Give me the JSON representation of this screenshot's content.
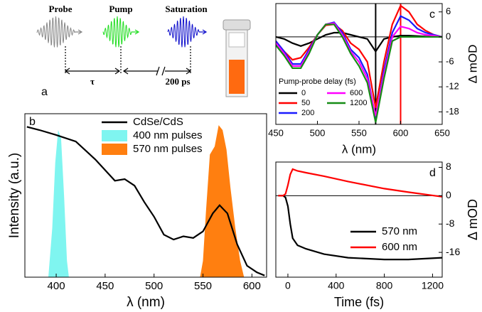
{
  "diagram": {
    "panel_label": "a",
    "pulses": [
      "Probe",
      "Pump",
      "Saturation"
    ],
    "delays": [
      "τ",
      "200 ps"
    ]
  },
  "chart_data": [
    {
      "type": "line",
      "panel_label": "b",
      "x_label": "λ (nm)",
      "y_label": "Intensity (a.u.)",
      "xlim": [
        368,
        615
      ],
      "xticks": [
        400,
        450,
        500,
        550,
        600
      ],
      "ylim": [
        0,
        1
      ],
      "y_axis_side": "left",
      "legend": "upper center",
      "series": [
        {
          "name": "CdSe/CdS",
          "style": "line",
          "color": "#000000",
          "x": [
            370,
            383,
            400,
            420,
            440,
            460,
            470,
            480,
            490,
            500,
            510,
            520,
            530,
            540,
            550,
            560,
            567,
            575,
            585,
            595,
            605,
            613
          ],
          "values": [
            0.92,
            0.9,
            0.87,
            0.83,
            0.72,
            0.59,
            0.6,
            0.56,
            0.46,
            0.37,
            0.26,
            0.23,
            0.25,
            0.24,
            0.28,
            0.39,
            0.44,
            0.39,
            0.2,
            0.07,
            0.03,
            0.01
          ]
        },
        {
          "name": "400 nm pulses",
          "style": "area",
          "color": "#7ff5f0",
          "x": [
            392,
            396,
            399,
            402,
            405,
            408,
            411,
            413
          ],
          "values": [
            0,
            0.3,
            0.7,
            0.9,
            0.85,
            0.5,
            0.1,
            0
          ]
        },
        {
          "name": "570 nm pulses",
          "style": "area",
          "color": "#ff7f10",
          "x": [
            547,
            550,
            553,
            557,
            562,
            566,
            570,
            574,
            578,
            583,
            588,
            592
          ],
          "values": [
            0,
            0.1,
            0.4,
            0.75,
            0.8,
            0.93,
            0.9,
            0.78,
            0.55,
            0.3,
            0.1,
            0
          ]
        }
      ]
    },
    {
      "type": "line",
      "panel_label": "c",
      "x_label": "λ (nm)",
      "y_label": "Δ mOD",
      "xlim": [
        450,
        650
      ],
      "xticks": [
        450,
        500,
        550,
        600,
        650
      ],
      "ylim": [
        -21,
        8
      ],
      "yticks": [
        6,
        0,
        -6,
        -12,
        -18
      ],
      "y_axis_side": "right",
      "legend_title": "Pump-probe delay (fs)",
      "legend": "lower left",
      "vlines": [
        {
          "x": 570,
          "color": "#000000"
        },
        {
          "x": 600,
          "color": "#ff0000"
        }
      ],
      "x": [
        450,
        460,
        470,
        480,
        490,
        500,
        510,
        520,
        530,
        540,
        550,
        560,
        570,
        580,
        590,
        600,
        610,
        620,
        630,
        640,
        650
      ],
      "series": [
        {
          "name": "0",
          "color": "#000000",
          "values": [
            0,
            -0.5,
            -1.5,
            -2.2,
            -1.5,
            -0.5,
            0.5,
            1,
            1,
            0.5,
            0,
            -0.5,
            -3.5,
            -0.5,
            0,
            0.3,
            0.3,
            0.2,
            0.1,
            0,
            0
          ]
        },
        {
          "name": "50",
          "color": "#ff0000",
          "values": [
            -1,
            -3.5,
            -5.5,
            -5,
            -2.5,
            0.5,
            2.8,
            3,
            1.5,
            -1.5,
            -3,
            -6,
            -17,
            -6,
            3,
            7.5,
            6,
            3,
            1.5,
            0.5,
            0
          ]
        },
        {
          "name": "200",
          "color": "#1a1aff",
          "values": [
            -1,
            -3.5,
            -6.5,
            -6.5,
            -3,
            0.5,
            3,
            3.5,
            1,
            -3,
            -5,
            -9,
            -19.5,
            -8,
            1,
            5,
            4,
            2,
            1,
            0.5,
            0
          ]
        },
        {
          "name": "600",
          "color": "#ff00ff",
          "values": [
            -1.5,
            -4,
            -7,
            -7,
            -3.5,
            0.5,
            3,
            3.3,
            0.5,
            -3.5,
            -6,
            -10,
            -19,
            -9,
            0,
            2.5,
            2,
            1,
            0.5,
            0.3,
            0
          ]
        },
        {
          "name": "1200",
          "color": "#168c16",
          "values": [
            -2,
            -4.5,
            -7.5,
            -7.5,
            -4,
            0.5,
            3,
            3,
            0,
            -4,
            -7,
            -11,
            -20.5,
            -10,
            -1,
            0,
            0,
            0,
            0,
            0,
            0
          ]
        }
      ]
    },
    {
      "type": "line",
      "panel_label": "d",
      "x_label": "Time (fs)",
      "y_label": "Δ mOD",
      "xlim": [
        -100,
        1280
      ],
      "xticks": [
        0,
        400,
        800,
        1200
      ],
      "ylim": [
        -23,
        9.5
      ],
      "yticks": [
        8,
        0,
        -8,
        -16
      ],
      "y_axis_side": "right",
      "legend": "lower right",
      "x": [
        -80,
        -40,
        -20,
        0,
        20,
        40,
        80,
        150,
        300,
        500,
        800,
        1000,
        1280
      ],
      "series": [
        {
          "name": "570 nm",
          "color": "#000000",
          "values": [
            0,
            0,
            -0.5,
            -3,
            -8,
            -12,
            -14,
            -15,
            -16.5,
            -17.5,
            -18,
            -18,
            -17.5
          ]
        },
        {
          "name": "600 nm",
          "color": "#ff0000",
          "values": [
            0,
            0,
            0.5,
            3,
            6,
            7.5,
            7,
            6.5,
            5.5,
            4,
            2,
            1,
            -0.3
          ]
        }
      ]
    }
  ]
}
